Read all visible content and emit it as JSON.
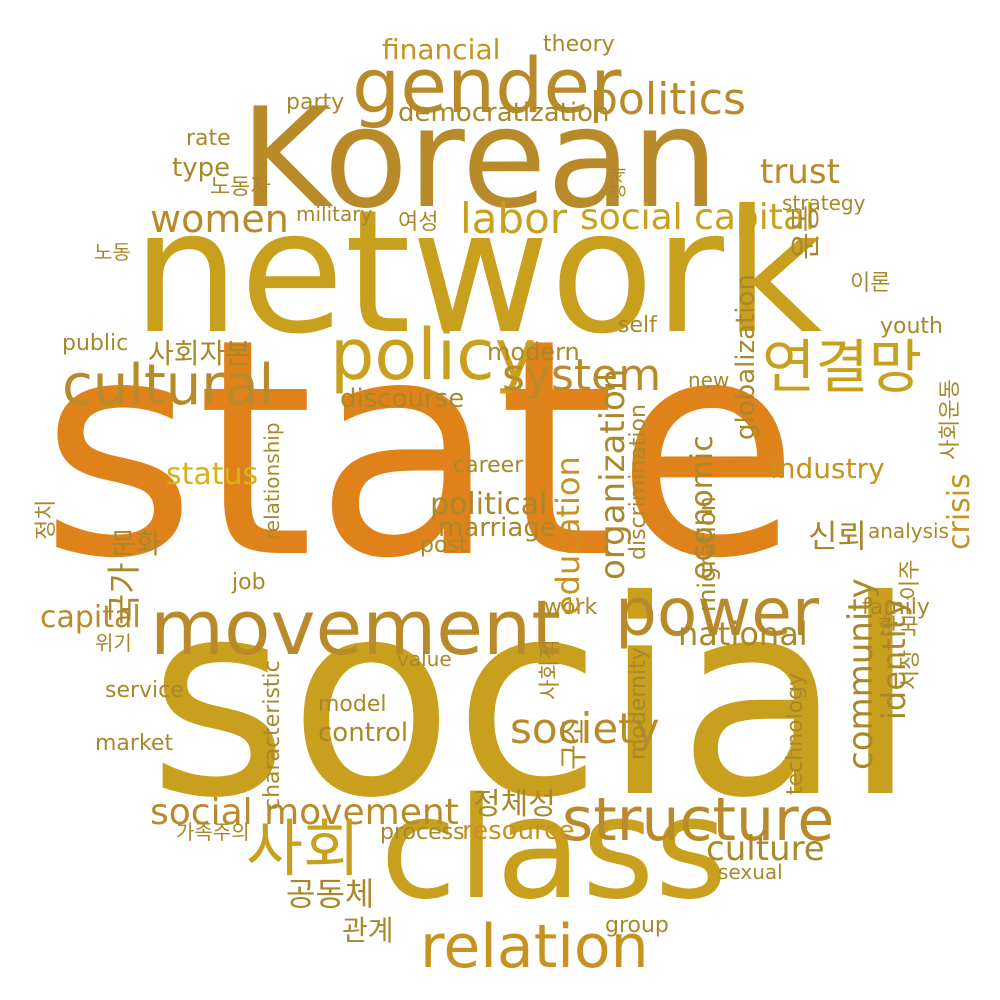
{
  "palette": {
    "orange": "#e0821a",
    "gold": "#c8a01e",
    "bronze": "#b98a2a",
    "yellow": "#d9b11a",
    "amber": "#c7921f",
    "olive": "#a9882c"
  },
  "words": {
    "state": "state",
    "social": "social",
    "network": "network",
    "korean": "Korean",
    "class": "class",
    "gender": "gender",
    "movement": "movement",
    "policy": "policy",
    "power": "power",
    "structure": "structure",
    "relation": "relation",
    "cultural": "cultural",
    "politics": "politics",
    "women": "women",
    "social_capital": "social capital",
    "system": "system",
    "labor": "labor",
    "society": "society",
    "social_movement": "social movement",
    "community": "community",
    "organization": "organization",
    "economic": "economic",
    "education": "education",
    "identity": "identity",
    "national": "national",
    "political": "political",
    "financial": "financial",
    "democratization": "democratization",
    "trust": "trust",
    "culture": "culture",
    "crisis": "crisis",
    "globalization": "globalization",
    "status": "status",
    "capital": "capital",
    "resource": "resource",
    "discourse": "discourse",
    "industry": "industry",
    "theory": "theory",
    "marriage": "marriage",
    "modern": "modern",
    "family": "family",
    "technology": "technology",
    "migration": "migration",
    "control": "control",
    "process": "process",
    "group": "group",
    "sexual": "sexual",
    "market": "market",
    "analysis": "analysis",
    "characteristic": "characteristic",
    "youth": "youth",
    "public": "public",
    "work": "work",
    "model": "model",
    "value": "value",
    "career": "career",
    "post": "post",
    "self": "self",
    "strategy": "strategy",
    "type": "type",
    "party": "party",
    "rate": "rate",
    "military": "military",
    "job": "job",
    "service": "service",
    "new": "new",
    "relationship": "relationship",
    "modernity": "modernity",
    "discrimination": "discrimination",
    "k_sahoe": "사회",
    "k_yeongyeolmang": "연결망",
    "k_sahoejabon": "사회자본",
    "k_gukga": "국가",
    "k_sinroe": "신뢰",
    "k_gongdongche": "공동체",
    "k_jeongcheseong": "정체성",
    "k_undong": "운동",
    "k_gwangye": "관계",
    "k_munhwa": "문화",
    "k_gujo": "구조",
    "k_nodongja": "노동자",
    "k_hanguk": "한국",
    "k_ijoo": "이주",
    "k_jeongchi": "정치",
    "k_iron": "이론",
    "k_yeoseong": "여성",
    "k_sijang": "시장",
    "k_sahoejeok": "사회적",
    "k_sahoeundong": "사회운동",
    "k_gajokjuui": "가족주의",
    "k_nodong": "노동",
    "k_wigi": "위기",
    "k_gyeongje": "경제"
  }
}
